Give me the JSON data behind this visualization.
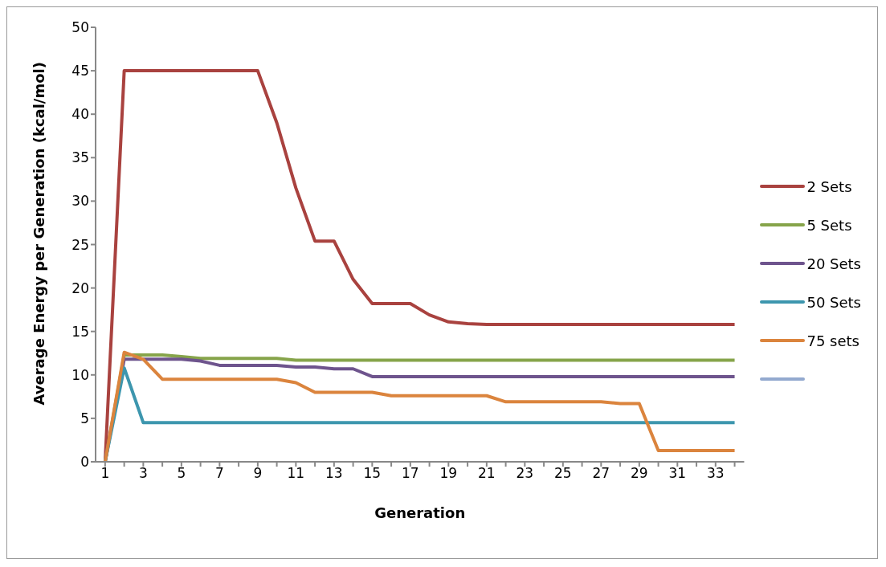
{
  "chart_data": {
    "type": "line",
    "xlabel": "Generation",
    "ylabel": "Average Energy per Generation (kcal/mol)",
    "x": [
      1,
      2,
      3,
      4,
      5,
      6,
      7,
      8,
      9,
      10,
      11,
      12,
      13,
      14,
      15,
      16,
      17,
      18,
      19,
      20,
      21,
      22,
      23,
      24,
      25,
      26,
      27,
      28,
      29,
      30,
      31,
      32,
      33,
      34
    ],
    "xlim": [
      0.5,
      34.5
    ],
    "xticks": [
      1,
      {
        "value": 2,
        "label": null
      },
      3,
      {
        "value": 4,
        "label": null
      },
      5,
      {
        "value": 6,
        "label": null
      },
      7,
      {
        "value": 8,
        "label": null
      },
      9,
      {
        "value": 10,
        "label": null
      },
      11,
      {
        "value": 12,
        "label": null
      },
      13,
      {
        "value": 14,
        "label": null
      },
      15,
      {
        "value": 16,
        "label": null
      },
      17,
      {
        "value": 18,
        "label": null
      },
      19,
      {
        "value": 20,
        "label": null
      },
      21,
      {
        "value": 22,
        "label": null
      },
      23,
      {
        "value": 24,
        "label": null
      },
      25,
      {
        "value": 26,
        "label": null
      },
      27,
      {
        "value": 28,
        "label": null
      },
      29,
      {
        "value": 30,
        "label": null
      },
      31,
      {
        "value": 32,
        "label": null
      },
      33,
      {
        "value": 34,
        "label": null
      }
    ],
    "ylim": [
      0,
      50
    ],
    "yticks": [
      0,
      5,
      10,
      15,
      20,
      25,
      30,
      35,
      40,
      45,
      50
    ],
    "grid": false,
    "legend": "right",
    "series": [
      {
        "name": "2 Sets",
        "color": "#a9423f",
        "values": [
          0,
          45,
          45,
          45,
          45,
          45,
          45,
          45,
          45,
          39,
          31.5,
          25.4,
          25.4,
          21,
          18.2,
          18.2,
          18.2,
          16.9,
          16.1,
          15.9,
          15.8,
          15.8,
          15.8,
          15.8,
          15.8,
          15.8,
          15.8,
          15.8,
          15.8,
          15.8,
          15.8,
          15.8,
          15.8,
          15.8
        ]
      },
      {
        "name": "5 Sets",
        "color": "#86a44a",
        "values": [
          0,
          12.3,
          12.3,
          12.3,
          12.1,
          11.9,
          11.9,
          11.9,
          11.9,
          11.9,
          11.7,
          11.7,
          11.7,
          11.7,
          11.7,
          11.7,
          11.7,
          11.7,
          11.7,
          11.7,
          11.7,
          11.7,
          11.7,
          11.7,
          11.7,
          11.7,
          11.7,
          11.7,
          11.7,
          11.7,
          11.7,
          11.7,
          11.7,
          11.7
        ]
      },
      {
        "name": "20 Sets",
        "color": "#6e548d",
        "values": [
          0,
          11.8,
          11.8,
          11.8,
          11.8,
          11.6,
          11.1,
          11.1,
          11.1,
          11.1,
          10.9,
          10.9,
          10.7,
          10.7,
          9.8,
          9.8,
          9.8,
          9.8,
          9.8,
          9.8,
          9.8,
          9.8,
          9.8,
          9.8,
          9.8,
          9.8,
          9.8,
          9.8,
          9.8,
          9.8,
          9.8,
          9.8,
          9.8,
          9.8
        ]
      },
      {
        "name": "50 Sets",
        "color": "#3d96ae",
        "values": [
          0,
          10.8,
          4.5,
          4.5,
          4.5,
          4.5,
          4.5,
          4.5,
          4.5,
          4.5,
          4.5,
          4.5,
          4.5,
          4.5,
          4.5,
          4.5,
          4.5,
          4.5,
          4.5,
          4.5,
          4.5,
          4.5,
          4.5,
          4.5,
          4.5,
          4.5,
          4.5,
          4.5,
          4.5,
          4.5,
          4.5,
          4.5,
          4.5,
          4.5
        ]
      },
      {
        "name": "75 sets",
        "color": "#db843d",
        "values": [
          0,
          12.6,
          11.8,
          9.5,
          9.5,
          9.5,
          9.5,
          9.5,
          9.5,
          9.5,
          9.1,
          8.0,
          8.0,
          8.0,
          8.0,
          7.6,
          7.6,
          7.6,
          7.6,
          7.6,
          7.6,
          6.9,
          6.9,
          6.9,
          6.9,
          6.9,
          6.9,
          6.7,
          6.7,
          1.3,
          1.3,
          1.3,
          1.3,
          1.3
        ]
      },
      {
        "color": "#93a9cf",
        "values": [
          null,
          null,
          null,
          null,
          null,
          null,
          null,
          null,
          null,
          null,
          null,
          null,
          null,
          null,
          null,
          null,
          null,
          null,
          null,
          null,
          null,
          null,
          null,
          null,
          null,
          null,
          null,
          null,
          null,
          null,
          null,
          null,
          null,
          null
        ]
      }
    ]
  }
}
